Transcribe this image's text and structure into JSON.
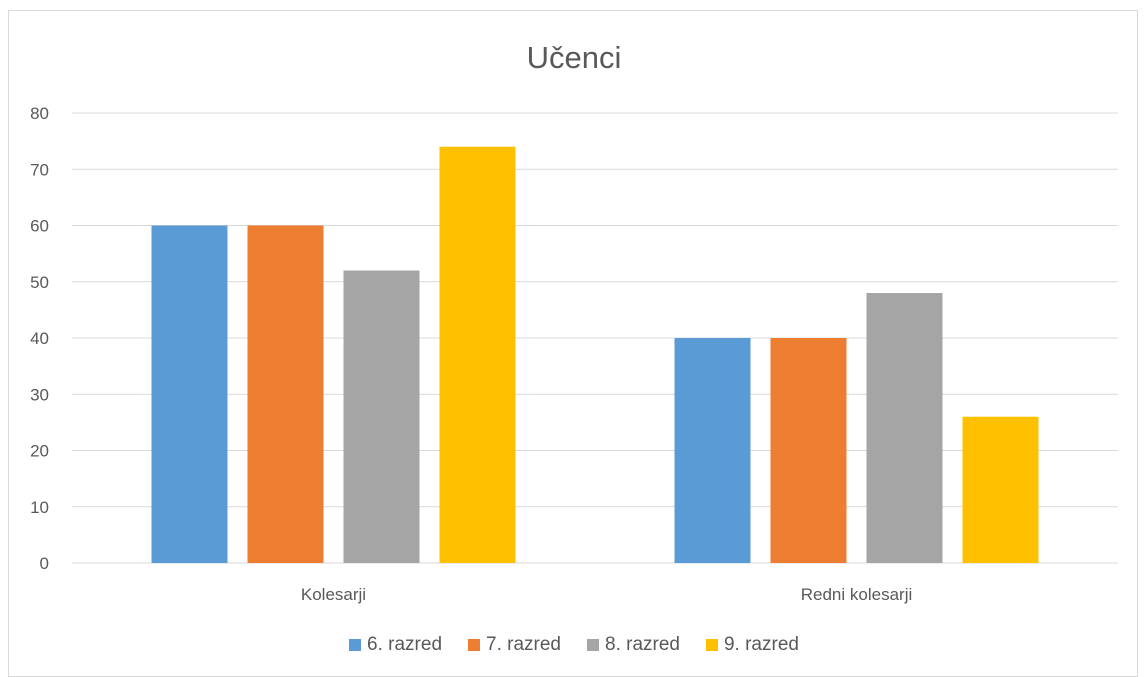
{
  "chart_data": {
    "type": "bar",
    "title": "Učenci",
    "xlabel": "",
    "ylabel": "",
    "categories": [
      "Kolesarji",
      "Redni kolesarji"
    ],
    "series": [
      {
        "name": "6. razred",
        "values": [
          60,
          40
        ],
        "color": "#5b9bd5"
      },
      {
        "name": "7. razred",
        "values": [
          60,
          40
        ],
        "color": "#ed7d31"
      },
      {
        "name": "8. razred",
        "values": [
          52,
          48
        ],
        "color": "#a5a5a5"
      },
      {
        "name": "9. razred",
        "values": [
          74,
          26
        ],
        "color": "#ffc000"
      }
    ],
    "ylim": [
      0,
      80
    ],
    "yticks": [
      "0",
      "10",
      "20",
      "30",
      "40",
      "50",
      "60",
      "70",
      "80"
    ],
    "grid": true,
    "legend_position": "bottom"
  }
}
